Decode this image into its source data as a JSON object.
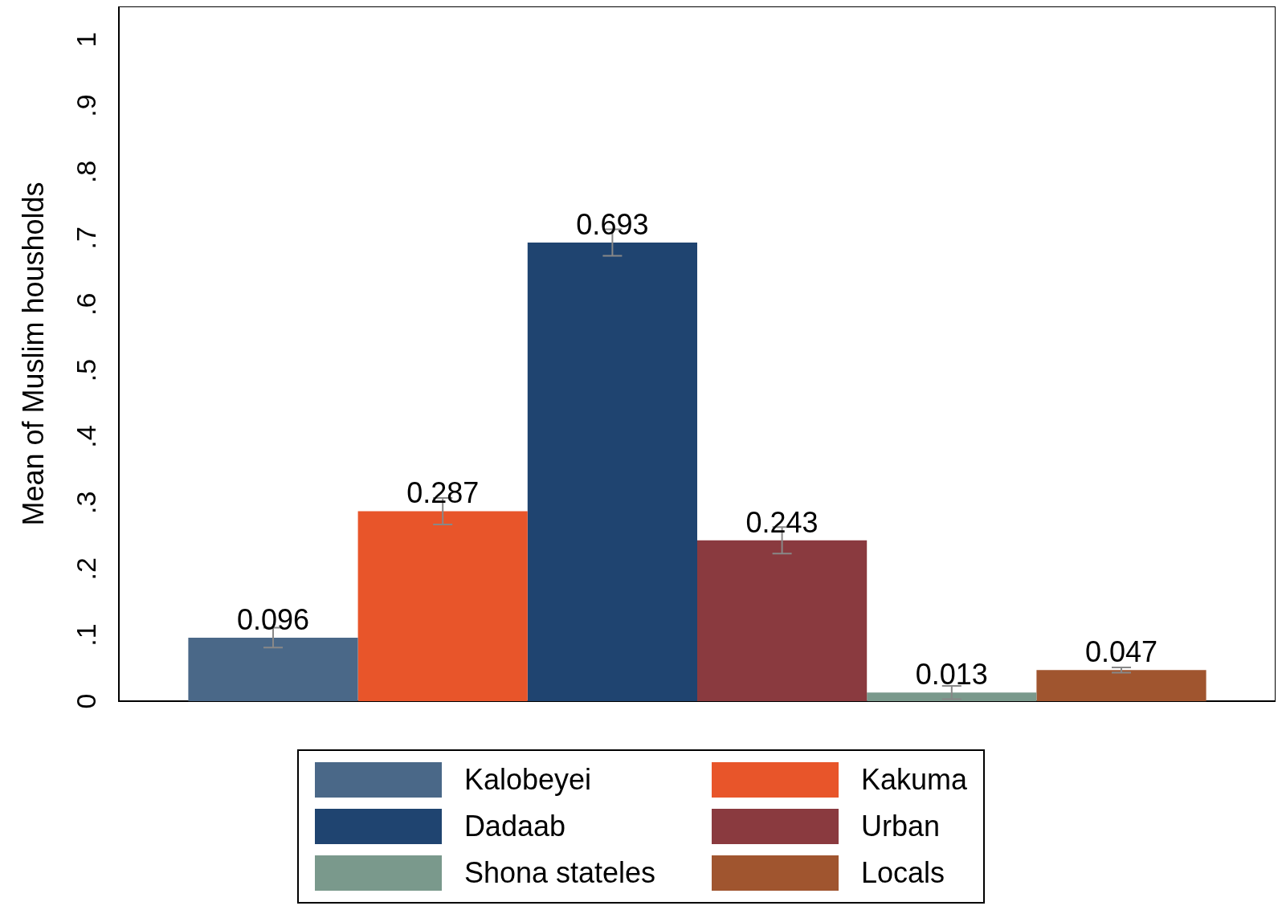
{
  "chart_data": {
    "type": "bar",
    "ylabel": "Mean of Muslim housholds",
    "categories": [
      null
    ],
    "series": [
      {
        "name": "Kalobeyei",
        "color": "#4a6888",
        "values": [
          0.096
        ],
        "errors": [
          0.015
        ]
      },
      {
        "name": "Kakuma",
        "color": "#e8552a",
        "values": [
          0.287
        ],
        "errors": [
          0.02
        ]
      },
      {
        "name": "Dadaab",
        "color": "#1f4470",
        "values": [
          0.693
        ],
        "errors": [
          0.02
        ]
      },
      {
        "name": "Urban",
        "color": "#8a3a3f",
        "values": [
          0.243
        ],
        "errors": [
          0.02
        ]
      },
      {
        "name": "Shona stateles",
        "color": "#7a998c",
        "values": [
          0.013
        ],
        "errors": [
          0.01
        ]
      },
      {
        "name": "Locals",
        "color": "#a0552f",
        "values": [
          0.047
        ],
        "errors": [
          0.004
        ]
      }
    ],
    "ylim": [
      0,
      1.05
    ],
    "yticks": [
      0,
      {
        "value": 0.1,
        "label": ".1"
      },
      {
        "value": 0.2,
        "label": ".2"
      },
      {
        "value": 0.3,
        "label": ".3"
      },
      {
        "value": 0.4,
        "label": ".4"
      },
      {
        "value": 0.5,
        "label": ".5"
      },
      {
        "value": 0.6,
        "label": ".6"
      },
      {
        "value": 0.7,
        "label": ".7"
      },
      {
        "value": 0.8,
        "label": ".8"
      },
      {
        "value": 0.9,
        "label": ".9"
      },
      1
    ],
    "grid": false,
    "legend": "bottom",
    "tick_labels": "y",
    "data_labels": true
  }
}
